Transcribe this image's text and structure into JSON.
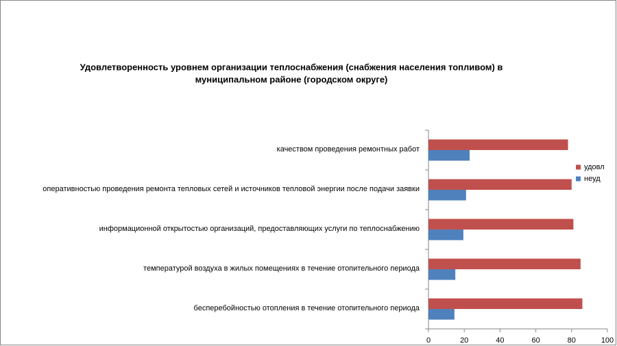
{
  "chart_data": {
    "type": "hbar",
    "title": [
      "Удовлетворенность уровнем организации теплоснабжения (снабжения населения топливом) в",
      "муниципальном районе (городском округе)"
    ],
    "categories": [
      "качеством проведения ремонтных работ",
      "оперативностью проведения ремонта тепловых сетей и источников тепловой энергии после подачи заявки",
      "информационной открытостью организаций, предоставляющих услуги по теплоснабжению",
      "температурой воздуха в жилых помещениях в течение отопительного периода",
      "бесперебойностью отопления в течение отопительного периода"
    ],
    "series": [
      {
        "name": "удовл",
        "color": "#c0504d",
        "values": [
          78,
          80,
          81,
          85,
          86
        ]
      },
      {
        "name": "неуд",
        "color": "#4f81bd",
        "values": [
          23,
          21,
          19.5,
          15,
          14.5
        ]
      }
    ],
    "xlim": [
      0,
      100
    ],
    "xticks": [
      0,
      20,
      40,
      60,
      80,
      100
    ],
    "grid": false,
    "legend": "right"
  }
}
